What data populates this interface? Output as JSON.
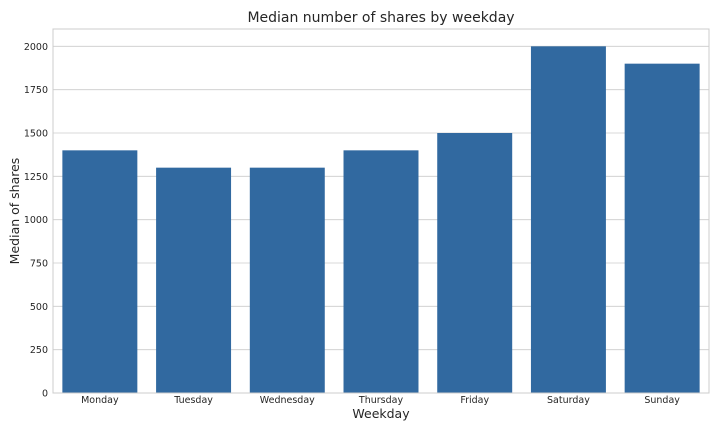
{
  "chart_data": {
    "type": "bar",
    "title": "Median number of shares by weekday",
    "xlabel": "Weekday",
    "ylabel": "Median of shares",
    "categories": [
      "Monday",
      "Tuesday",
      "Wednesday",
      "Thursday",
      "Friday",
      "Saturday",
      "Sunday"
    ],
    "values": [
      1400,
      1300,
      1300,
      1400,
      1500,
      2000,
      1900
    ],
    "ylim": [
      0,
      2100
    ],
    "yticks": [
      0,
      250,
      500,
      750,
      1000,
      1250,
      1500,
      1750,
      2000
    ],
    "grid": true,
    "bar_color": "#3169a0",
    "grid_color": "#cccccc",
    "background_color": "#ffffff"
  }
}
